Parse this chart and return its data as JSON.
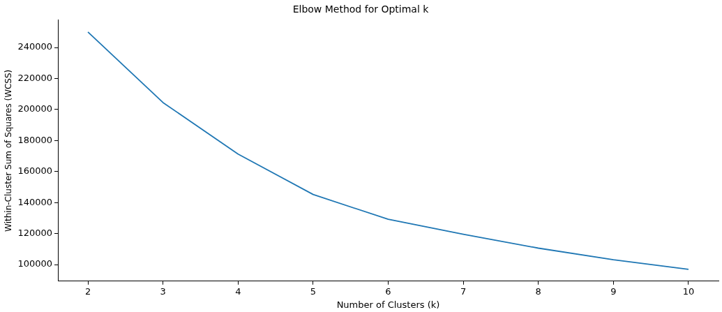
{
  "chart_data": {
    "type": "line",
    "title": "Elbow Method for Optimal k",
    "xlabel": "Number of Clusters (k)",
    "ylabel": "Within-Cluster Sum of Squares (WCSS)",
    "x": [
      2,
      3,
      4,
      5,
      6,
      7,
      8,
      9,
      10
    ],
    "series": [
      {
        "color": "#1f77b4",
        "values": [
          250000,
          204500,
          171300,
          145200,
          129200,
          119500,
          110600,
          103100,
          96900
        ]
      }
    ],
    "xlim": [
      1.6,
      10.4
    ],
    "xticks": [
      2,
      3,
      4,
      5,
      6,
      7,
      8,
      9,
      10
    ],
    "ylim": [
      89300,
      257700
    ],
    "yticks": [
      100000,
      120000,
      140000,
      160000,
      180000,
      200000,
      220000,
      240000
    ],
    "grid": false,
    "legend": false,
    "marker": "none",
    "line_style": "solid"
  }
}
